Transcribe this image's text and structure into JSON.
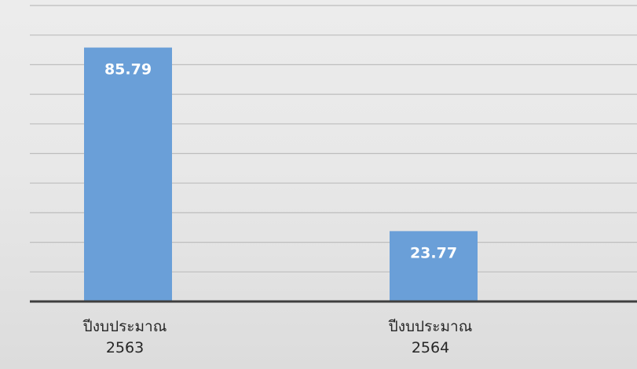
{
  "chart_data": {
    "type": "bar",
    "categories": [
      [
        "ปีงบประมาณ",
        "2563"
      ],
      [
        "ปีงบประมาณ",
        "2564"
      ]
    ],
    "values": [
      85.79,
      23.77
    ],
    "data_labels": [
      "85.79",
      "23.77"
    ],
    "title": "",
    "xlabel": "",
    "ylabel": "",
    "ylim": [
      0,
      100
    ],
    "y_gridline_step": 10,
    "grid": true,
    "legend": "none",
    "bar_color": "#6a9fd8"
  }
}
